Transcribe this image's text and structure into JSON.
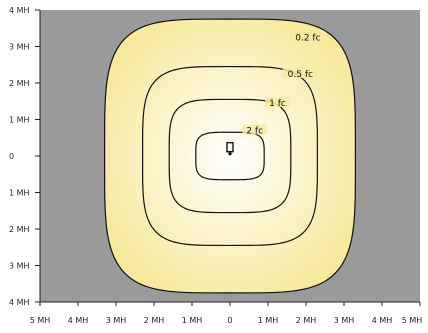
{
  "chart_data": {
    "type": "contour",
    "title": "",
    "xlabel": "",
    "ylabel": "",
    "xlim": [
      -5,
      5
    ],
    "ylim": [
      -4,
      4
    ],
    "grid": false,
    "x_ticks": [
      {
        "value": -5,
        "label": "5 MH"
      },
      {
        "value": -4,
        "label": "4 MH"
      },
      {
        "value": -3,
        "label": "3 MH"
      },
      {
        "value": -2,
        "label": "2 MH"
      },
      {
        "value": -1,
        "label": "1 MH"
      },
      {
        "value": 0,
        "label": "0"
      },
      {
        "value": 1,
        "label": "1 MH"
      },
      {
        "value": 2,
        "label": "2 MH"
      },
      {
        "value": 3,
        "label": "3 MH"
      },
      {
        "value": 4,
        "label": "4 MH"
      },
      {
        "value": 5,
        "label": "5 MH"
      }
    ],
    "y_ticks": [
      {
        "value": 4,
        "label": "4 MH"
      },
      {
        "value": 3,
        "label": "3 MH"
      },
      {
        "value": 2,
        "label": "2 MH"
      },
      {
        "value": 1,
        "label": "1 MH"
      },
      {
        "value": 0,
        "label": "0"
      },
      {
        "value": -1,
        "label": "1 MH"
      },
      {
        "value": -2,
        "label": "2 MH"
      },
      {
        "value": -3,
        "label": "3 MH"
      },
      {
        "value": -4,
        "label": "4 MH"
      }
    ],
    "contours": [
      {
        "name": "0.2 fc",
        "label": "0.2 fc",
        "half_width": 3.3,
        "half_height": 3.75,
        "label_at": [
          2.05,
          3.25
        ]
      },
      {
        "name": "0.5 fc",
        "label": "0.5 fc",
        "half_width": 2.3,
        "half_height": 2.45,
        "label_at": [
          1.85,
          2.25
        ]
      },
      {
        "name": "1 fc",
        "label": "1 fc",
        "half_width": 1.6,
        "half_height": 1.55,
        "label_at": [
          1.25,
          1.45
        ]
      },
      {
        "name": "2 fc",
        "label": "2 fc",
        "half_width": 0.9,
        "half_height": 0.65,
        "label_at": [
          0.65,
          0.7
        ]
      }
    ],
    "luminaire": {
      "x": 0,
      "y": 0.2
    },
    "colors": {
      "background": "#9a9a9a",
      "fill_outer": "#f7ea9e",
      "fill_center": "#ffffff",
      "contour_line": "#111111",
      "axis": "#222222"
    }
  }
}
